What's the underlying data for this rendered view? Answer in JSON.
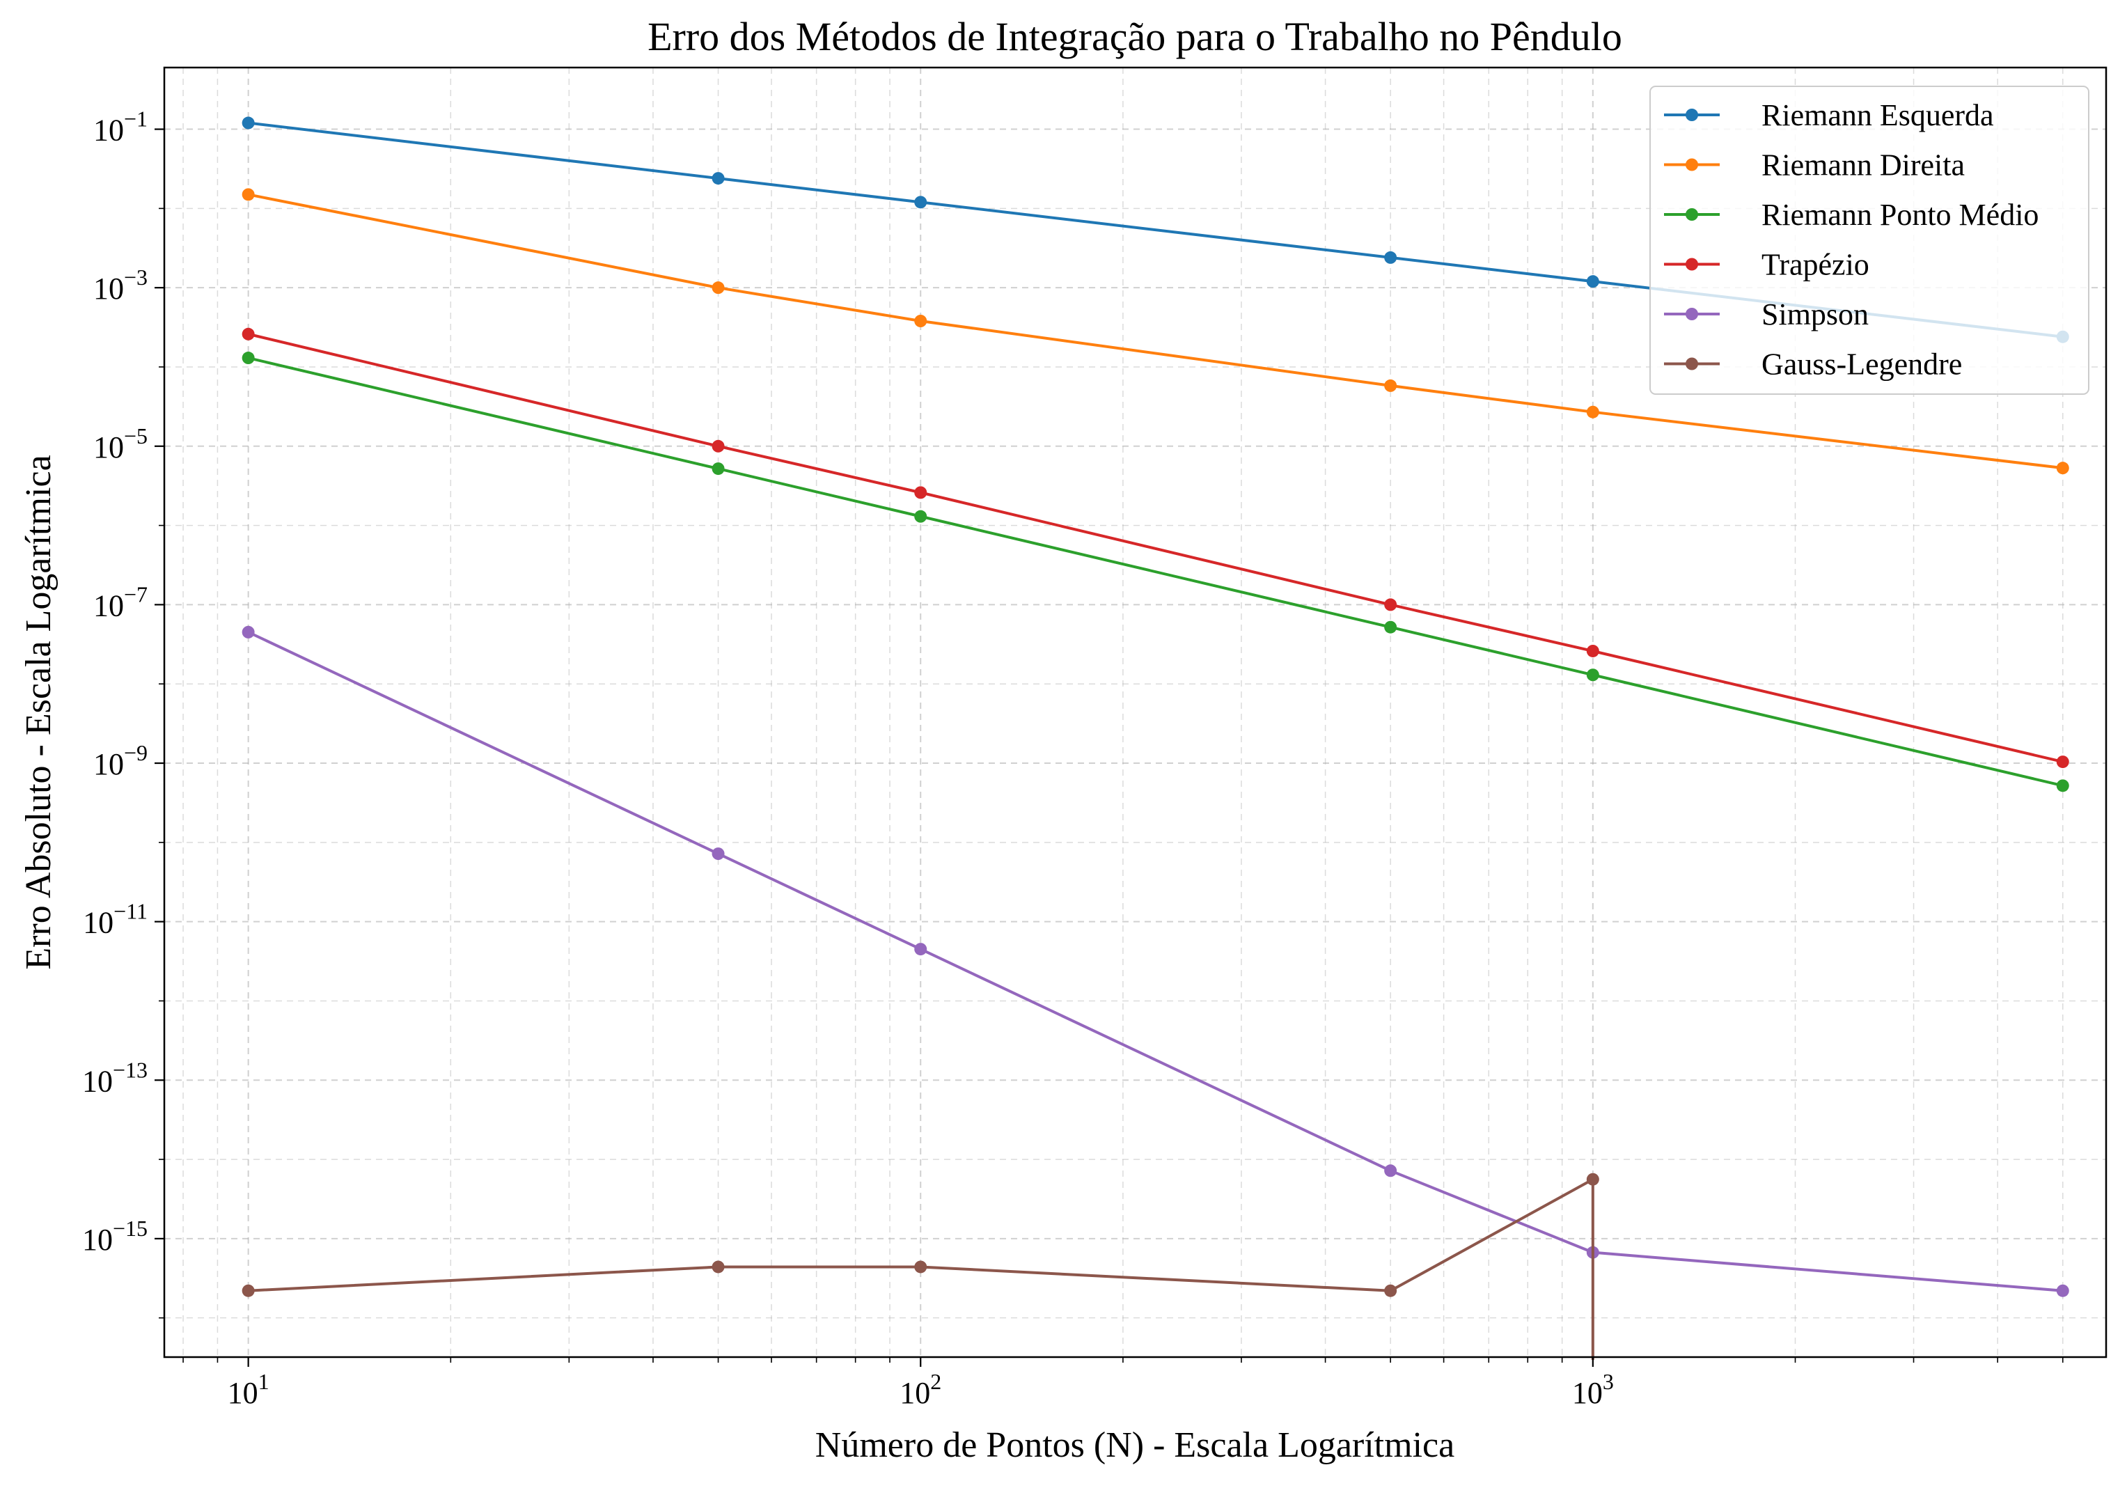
{
  "chart_data": {
    "type": "line",
    "title": "Erro dos Métodos de Integração para o Trabalho no Pêndulo",
    "xlabel": "Número de Pontos (N) - Escala Logarítmica",
    "ylabel": "Erro Absoluto - Escala Logarítmica",
    "xscale": "log",
    "yscale": "log",
    "xlim": [
      7.5,
      5800
    ],
    "ylim": [
      3.2e-17,
      0.6
    ],
    "grid": true,
    "legend_position": "top-right",
    "x_ticks": [
      {
        "value": 10,
        "base": "10",
        "exp": "1"
      },
      {
        "value": 100,
        "base": "10",
        "exp": "2"
      },
      {
        "value": 1000,
        "base": "10",
        "exp": "3"
      }
    ],
    "y_ticks": [
      {
        "value": 0.1,
        "base": "10",
        "exp": "−1"
      },
      {
        "value": 0.001,
        "base": "10",
        "exp": "−3"
      },
      {
        "value": 1e-05,
        "base": "10",
        "exp": "−5"
      },
      {
        "value": 1e-07,
        "base": "10",
        "exp": "−7"
      },
      {
        "value": 1e-09,
        "base": "10",
        "exp": "−9"
      },
      {
        "value": 1e-11,
        "base": "10",
        "exp": "−11"
      },
      {
        "value": 1e-13,
        "base": "10",
        "exp": "−13"
      },
      {
        "value": 1e-15,
        "base": "10",
        "exp": "−15"
      }
    ],
    "series": [
      {
        "name": "Riemann Esquerda",
        "color": "#1f77b4",
        "points": [
          [
            10,
            0.12
          ],
          [
            50,
            0.024
          ],
          [
            100,
            0.012
          ],
          [
            500,
            0.0024
          ],
          [
            1000,
            0.0012
          ],
          [
            5000,
            0.00024
          ]
        ]
      },
      {
        "name": "Riemann Direita",
        "color": "#ff7f0e",
        "points": [
          [
            10,
            0.015
          ],
          [
            50,
            0.001
          ],
          [
            100,
            0.00038
          ],
          [
            500,
            5.8e-05
          ],
          [
            1000,
            2.7e-05
          ],
          [
            5000,
            5.3e-06
          ]
        ]
      },
      {
        "name": "Riemann Ponto Médio",
        "color": "#2ca02c",
        "points": [
          [
            10,
            0.00013
          ],
          [
            50,
            5.2e-06
          ],
          [
            100,
            1.3e-06
          ],
          [
            500,
            5.2e-08
          ],
          [
            1000,
            1.3e-08
          ],
          [
            5000,
            5.2e-10
          ]
        ]
      },
      {
        "name": "Trapézio",
        "color": "#d62728",
        "points": [
          [
            10,
            0.00026
          ],
          [
            50,
            1e-05
          ],
          [
            100,
            2.6e-06
          ],
          [
            500,
            1e-07
          ],
          [
            1000,
            2.6e-08
          ],
          [
            5000,
            1.04e-09
          ]
        ]
      },
      {
        "name": "Simpson",
        "color": "#9467bd",
        "points": [
          [
            10,
            4.5e-08
          ],
          [
            50,
            7.2e-11
          ],
          [
            100,
            4.5e-12
          ],
          [
            500,
            7.2e-15
          ],
          [
            1000,
            6.7e-16
          ],
          [
            5000,
            2.2e-16
          ]
        ]
      },
      {
        "name": "Gauss-Legendre",
        "color": "#8c564b",
        "points": [
          [
            10,
            2.2e-16
          ],
          [
            50,
            4.4e-16
          ],
          [
            100,
            4.4e-16
          ],
          [
            500,
            2.2e-16
          ],
          [
            1000,
            5.6e-15
          ],
          [
            1000,
            0
          ]
        ]
      }
    ]
  }
}
